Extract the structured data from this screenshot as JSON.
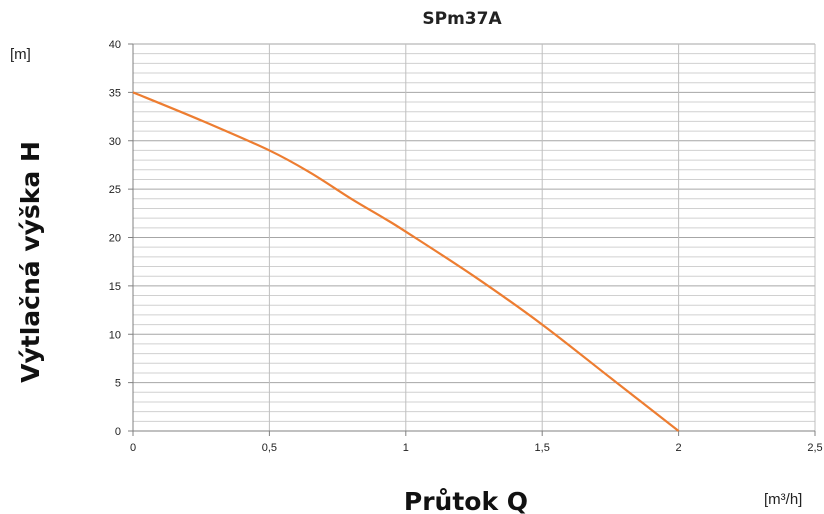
{
  "chart_data": {
    "type": "line",
    "title": "SPm37A",
    "xlabel": "Průtok Q",
    "ylabel": "Výtlačná výška H",
    "x_unit": "[m³/h]",
    "y_unit": "[m]",
    "xlim": [
      0,
      2.5
    ],
    "ylim": [
      0,
      40
    ],
    "x_ticks": [
      "0",
      "0,5",
      "1",
      "1,5",
      "2",
      "2,5"
    ],
    "y_ticks": [
      "0",
      "5",
      "10",
      "15",
      "20",
      "25",
      "30",
      "35",
      "40"
    ],
    "x_tick_values": [
      0,
      0.5,
      1,
      1.5,
      2,
      2.5
    ],
    "y_tick_values": [
      0,
      5,
      10,
      15,
      20,
      25,
      30,
      35,
      40
    ],
    "grid": true,
    "legend": "none",
    "series": [
      {
        "color": "#ED7D31",
        "x": [
          0,
          0.25,
          0.5,
          0.65,
          0.8,
          0.92,
          1.0,
          1.25,
          1.5,
          1.75,
          2.0
        ],
        "y": [
          35,
          32.1,
          29,
          26.7,
          24,
          22,
          20.6,
          16,
          11,
          5.5,
          0
        ]
      }
    ]
  }
}
